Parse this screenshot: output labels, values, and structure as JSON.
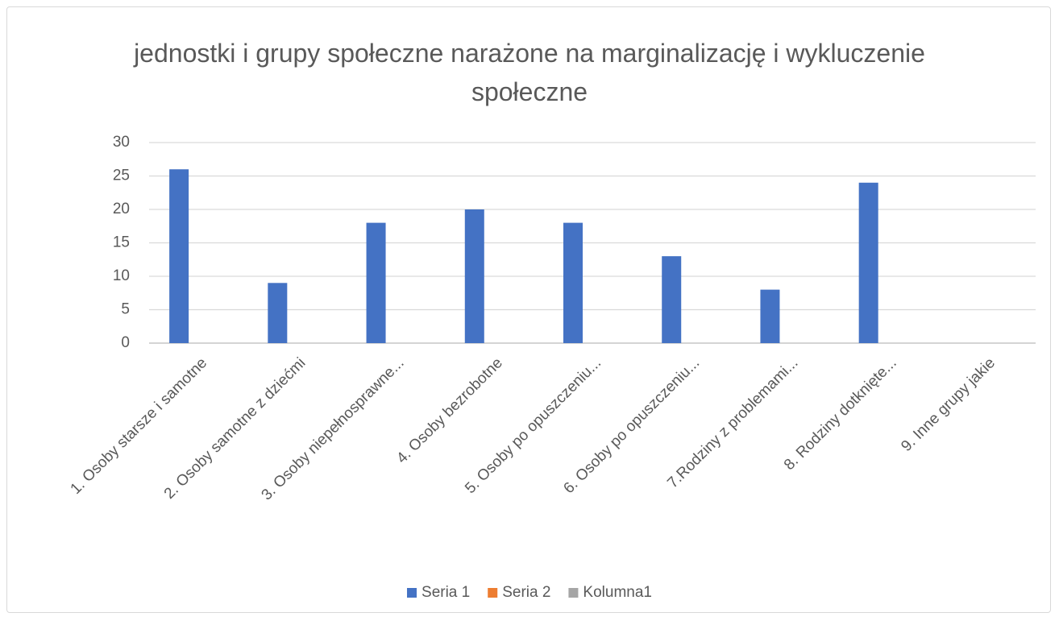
{
  "chart_data": {
    "type": "bar",
    "title": "jednostki i grupy społeczne narażone na marginalizację i wykluczenie społeczne",
    "categories": [
      "1. Osoby starsze i samotne",
      "2. Osoby samotne z dziećmi",
      "3. Osoby niepełnosprawne...",
      "4. Osoby bezrobotne",
      "5. Osoby po opuszczeniu...",
      "6. Osoby po opuszczeniu...",
      "7.Rodziny z problemami...",
      "8. Rodziny dotknięte...",
      "9. Inne grupy jakie"
    ],
    "series": [
      {
        "name": "Seria 1",
        "color": "#4472c4",
        "values": [
          26,
          9,
          18,
          20,
          18,
          13,
          8,
          24,
          null
        ]
      },
      {
        "name": "Seria 2",
        "color": "#ed7d31",
        "values": [
          null,
          null,
          null,
          null,
          null,
          null,
          null,
          null,
          null
        ]
      },
      {
        "name": "Kolumna1",
        "color": "#a5a5a5",
        "values": [
          null,
          null,
          null,
          null,
          null,
          null,
          null,
          null,
          null
        ]
      }
    ],
    "ylim": [
      0,
      30
    ],
    "yticks": [
      0,
      5,
      10,
      15,
      20,
      25,
      30
    ],
    "grid": true,
    "legend": "bottom"
  }
}
